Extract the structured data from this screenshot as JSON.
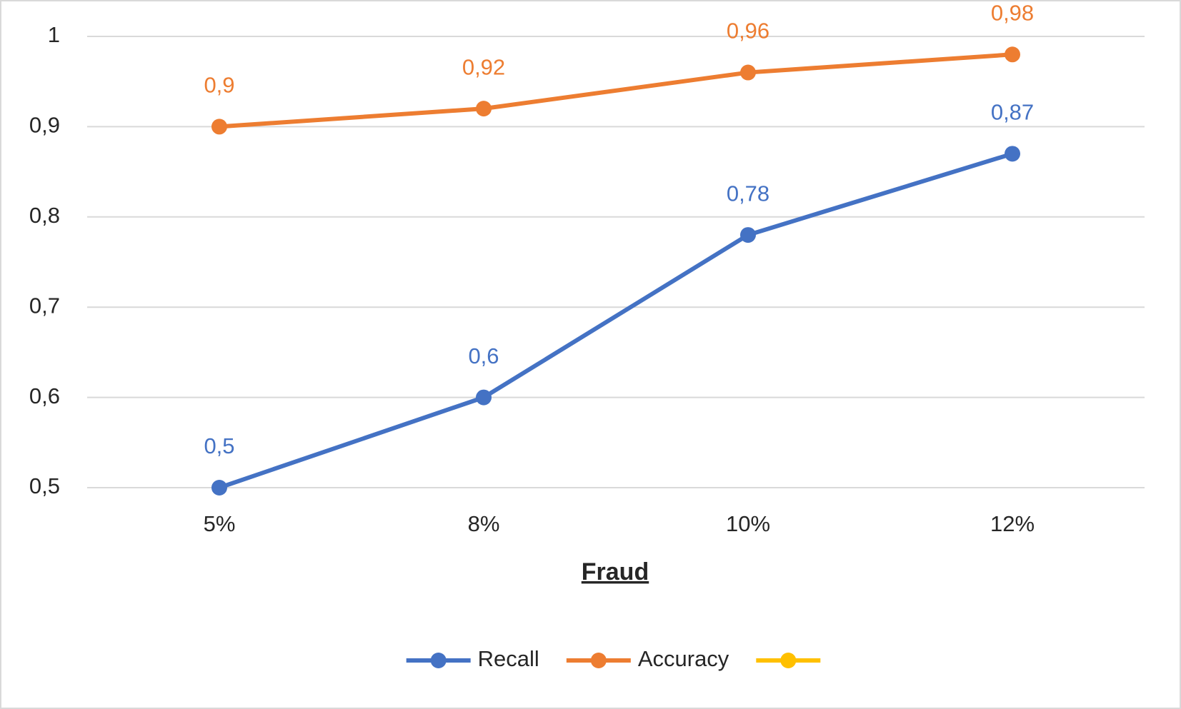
{
  "chart_data": {
    "type": "line",
    "x_label": "Fraud",
    "categories": [
      "5%",
      "8%",
      "10%",
      "12%"
    ],
    "series": [
      {
        "name": "Recall",
        "color": "#4472c4",
        "values": [
          0.5,
          0.6,
          0.78,
          0.87
        ],
        "value_labels": [
          "0,5",
          "0,6",
          "0,78",
          "0,87"
        ]
      },
      {
        "name": "Accuracy",
        "color": "#ed7d31",
        "values": [
          0.9,
          0.92,
          0.96,
          0.98
        ],
        "value_labels": [
          "0,9",
          "0,92",
          "0,96",
          "0,98"
        ]
      },
      {
        "name": null,
        "color": "#ffc000",
        "values": [
          null,
          null,
          null,
          null
        ]
      }
    ],
    "ylim": [
      0.5,
      1
    ],
    "yticks": [
      {
        "value": 0.5,
        "label": "0,5"
      },
      {
        "value": 0.6,
        "label": "0,6"
      },
      {
        "value": 0.7,
        "label": "0,7"
      },
      {
        "value": 0.8,
        "label": "0,8"
      },
      {
        "value": 0.9,
        "label": "0,9"
      },
      1
    ],
    "grid": true,
    "legend": "bottom"
  }
}
